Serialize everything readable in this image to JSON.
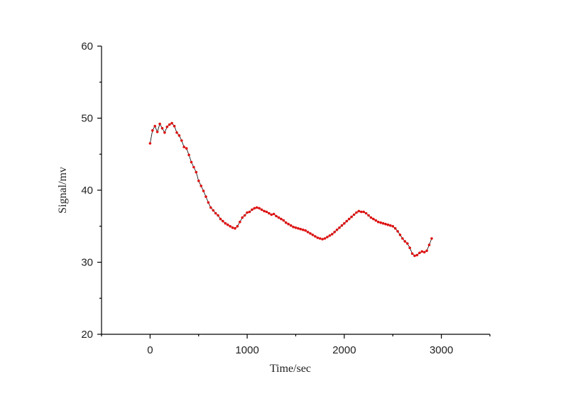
{
  "chart_data": {
    "type": "scatter",
    "title": "",
    "xlabel": "Time/sec",
    "ylabel": "Signal/mv",
    "xlim": [
      -500,
      3500
    ],
    "ylim": [
      20,
      60
    ],
    "x_ticks": [
      0,
      1000,
      2000,
      3000
    ],
    "y_ticks": [
      20,
      30,
      40,
      50,
      60
    ],
    "x_tick_labels": [
      "0",
      "1000",
      "2000",
      "3000"
    ],
    "y_tick_labels": [
      "20",
      "30",
      "40",
      "50",
      "60"
    ],
    "grid": false,
    "legend": "none",
    "marker_color": "#e01010",
    "line_color": "#000000",
    "series": [
      {
        "x": [
          0,
          25,
          50,
          75,
          100,
          125,
          150,
          175,
          200,
          225,
          250,
          275,
          300,
          325,
          350,
          375,
          400,
          425,
          450,
          475,
          500,
          525,
          550,
          575,
          600,
          625,
          650,
          675,
          700,
          725,
          750,
          775,
          800,
          825,
          850,
          875,
          900,
          925,
          950,
          975,
          1000,
          1025,
          1050,
          1075,
          1100,
          1125,
          1150,
          1175,
          1200,
          1225,
          1250,
          1275,
          1300,
          1325,
          1350,
          1375,
          1400,
          1425,
          1450,
          1475,
          1500,
          1525,
          1550,
          1575,
          1600,
          1625,
          1650,
          1675,
          1700,
          1725,
          1750,
          1775,
          1800,
          1825,
          1850,
          1875,
          1900,
          1925,
          1950,
          1975,
          2000,
          2025,
          2050,
          2075,
          2100,
          2125,
          2150,
          2175,
          2200,
          2225,
          2250,
          2275,
          2300,
          2325,
          2350,
          2375,
          2400,
          2425,
          2450,
          2475,
          2500,
          2525,
          2550,
          2575,
          2600,
          2625,
          2650,
          2675,
          2700,
          2725,
          2750,
          2775,
          2800,
          2825,
          2850,
          2875,
          2900
        ],
        "y": [
          46.5,
          48.3,
          48.9,
          48.1,
          49.2,
          48.6,
          48.0,
          48.8,
          49.1,
          49.3,
          48.9,
          48.0,
          47.6,
          46.9,
          46.0,
          45.8,
          44.9,
          43.9,
          43.2,
          42.5,
          41.3,
          40.6,
          39.9,
          39.1,
          38.3,
          37.6,
          37.2,
          36.8,
          36.5,
          36.0,
          35.7,
          35.4,
          35.2,
          35.0,
          34.8,
          34.7,
          35.0,
          35.6,
          36.2,
          36.5,
          36.9,
          37.0,
          37.3,
          37.5,
          37.6,
          37.5,
          37.3,
          37.1,
          37.0,
          36.8,
          36.6,
          36.7,
          36.4,
          36.2,
          36.0,
          35.8,
          35.5,
          35.3,
          35.1,
          34.9,
          34.8,
          34.7,
          34.6,
          34.5,
          34.4,
          34.2,
          34.0,
          33.8,
          33.6,
          33.4,
          33.3,
          33.2,
          33.3,
          33.5,
          33.7,
          33.9,
          34.2,
          34.5,
          34.8,
          35.1,
          35.4,
          35.7,
          36.0,
          36.3,
          36.6,
          36.9,
          37.1,
          37.0,
          37.0,
          36.8,
          36.5,
          36.2,
          36.0,
          35.8,
          35.6,
          35.5,
          35.4,
          35.3,
          35.2,
          35.1,
          35.0,
          34.7,
          34.3,
          33.8,
          33.3,
          32.9,
          32.6,
          32.0,
          31.2,
          30.9,
          31.0,
          31.3,
          31.5,
          31.4,
          31.6,
          32.4,
          33.3
        ]
      }
    ]
  }
}
